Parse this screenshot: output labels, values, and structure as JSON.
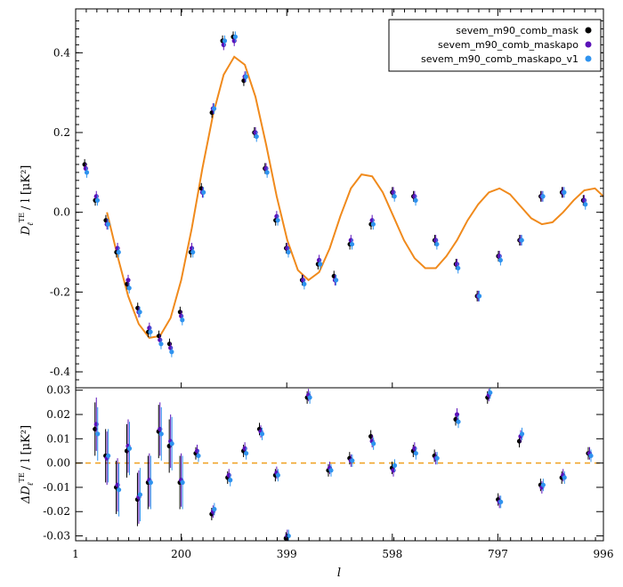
{
  "chart_data": {
    "type": "scatter",
    "xlabel": "l",
    "x_ticks": [
      "1",
      "200",
      "399",
      "598",
      "797",
      "996"
    ],
    "xlim": [
      1,
      996
    ],
    "top": {
      "ylabel_main": "D",
      "ylabel_sub": "ℓ",
      "ylabel_sup": "TE",
      "ylabel_rest": "/ l [μK²]",
      "ylim": [
        -0.44,
        0.51
      ],
      "y_ticks": [
        "-0.4",
        "-0.2",
        "0.0",
        "0.2",
        "0.4"
      ],
      "theory_curve": {
        "color": "#f08a1c",
        "x": [
          60,
          80,
          100,
          120,
          140,
          160,
          180,
          200,
          220,
          240,
          260,
          280,
          300,
          320,
          340,
          360,
          380,
          400,
          420,
          440,
          460,
          480,
          500,
          520,
          540,
          560,
          580,
          600,
          620,
          640,
          660,
          680,
          700,
          720,
          740,
          760,
          780,
          800,
          820,
          840,
          860,
          880,
          900,
          920,
          940,
          960,
          980,
          996
        ],
        "y": [
          0.0,
          -0.11,
          -0.21,
          -0.28,
          -0.315,
          -0.31,
          -0.265,
          -0.17,
          -0.04,
          0.11,
          0.245,
          0.345,
          0.39,
          0.37,
          0.29,
          0.17,
          0.04,
          -0.07,
          -0.145,
          -0.17,
          -0.15,
          -0.09,
          -0.01,
          0.06,
          0.095,
          0.09,
          0.05,
          -0.01,
          -0.07,
          -0.115,
          -0.14,
          -0.14,
          -0.11,
          -0.07,
          -0.02,
          0.02,
          0.05,
          0.06,
          0.045,
          0.015,
          -0.015,
          -0.03,
          -0.025,
          0.0,
          0.03,
          0.055,
          0.06,
          0.04
        ]
      },
      "series": [
        {
          "name": "sevem_m90_comb_mask",
          "color": "#000000",
          "x": [
            20,
            40,
            60,
            80,
            100,
            120,
            140,
            160,
            180,
            200,
            220,
            240,
            260,
            280,
            300,
            320,
            340,
            360,
            380,
            400,
            430,
            460,
            490,
            520,
            560,
            600,
            640,
            680,
            720,
            760,
            800,
            840,
            880,
            920,
            960
          ],
          "y": [
            0.12,
            0.03,
            -0.02,
            -0.1,
            -0.18,
            -0.24,
            -0.3,
            -0.31,
            -0.33,
            -0.25,
            -0.1,
            0.06,
            0.25,
            0.43,
            0.44,
            0.33,
            0.2,
            0.11,
            -0.02,
            -0.09,
            -0.17,
            -0.13,
            -0.16,
            -0.08,
            -0.03,
            0.05,
            0.04,
            -0.07,
            -0.13,
            -0.21,
            -0.11,
            -0.07,
            0.04,
            0.05,
            0.03
          ]
        },
        {
          "name": "sevem_m90_comb_maskapo",
          "color": "#5b12b8",
          "x": [
            20,
            40,
            60,
            80,
            100,
            120,
            140,
            160,
            180,
            200,
            220,
            240,
            260,
            280,
            300,
            320,
            340,
            360,
            380,
            400,
            430,
            460,
            490,
            520,
            560,
            600,
            640,
            680,
            720,
            760,
            800,
            840,
            880,
            920,
            960
          ],
          "y": [
            0.11,
            0.04,
            -0.03,
            -0.09,
            -0.17,
            -0.25,
            -0.29,
            -0.32,
            -0.34,
            -0.26,
            -0.09,
            0.05,
            0.26,
            0.42,
            0.43,
            0.34,
            0.2,
            0.11,
            -0.01,
            -0.09,
            -0.17,
            -0.12,
            -0.17,
            -0.07,
            -0.02,
            0.05,
            0.04,
            -0.07,
            -0.13,
            -0.21,
            -0.11,
            -0.07,
            0.04,
            0.05,
            0.03
          ]
        },
        {
          "name": "sevem_m90_comb_maskapo_v1",
          "color": "#2f93ef",
          "x": [
            20,
            40,
            60,
            80,
            100,
            120,
            140,
            160,
            180,
            200,
            220,
            240,
            260,
            280,
            300,
            320,
            340,
            360,
            380,
            400,
            430,
            460,
            490,
            520,
            560,
            600,
            640,
            680,
            720,
            760,
            800,
            840,
            880,
            920,
            960
          ],
          "y": [
            0.1,
            0.03,
            -0.03,
            -0.1,
            -0.19,
            -0.25,
            -0.3,
            -0.33,
            -0.35,
            -0.27,
            -0.1,
            0.05,
            0.26,
            0.43,
            0.44,
            0.34,
            0.19,
            0.1,
            -0.02,
            -0.1,
            -0.18,
            -0.13,
            -0.17,
            -0.08,
            -0.03,
            0.04,
            0.03,
            -0.08,
            -0.14,
            -0.21,
            -0.12,
            -0.07,
            0.04,
            0.05,
            0.02
          ]
        }
      ],
      "legend_position": "top-right"
    },
    "bottom": {
      "ylabel": "ΔD",
      "ylabel_sub": "ℓ",
      "ylabel_sup": "TE",
      "ylabel_rest": "/ l [μK²]",
      "ylim": [
        -0.032,
        0.031
      ],
      "y_ticks": [
        "-0.03",
        "-0.02",
        "-0.01",
        "0.00",
        "0.01",
        "0.02",
        "0.03"
      ],
      "reference_line": 0.0,
      "series": [
        {
          "name": "sevem_m90_comb_mask",
          "color": "#000000",
          "x": [
            40,
            60,
            80,
            100,
            120,
            140,
            160,
            180,
            200,
            230,
            260,
            290,
            320,
            350,
            380,
            400,
            440,
            480,
            520,
            560,
            600,
            640,
            680,
            720,
            780,
            800,
            840,
            880,
            920,
            970
          ],
          "y": [
            0.014,
            0.003,
            -0.01,
            0.005,
            -0.015,
            -0.008,
            0.013,
            0.007,
            -0.008,
            0.004,
            -0.021,
            -0.006,
            0.005,
            0.014,
            -0.005,
            -0.031,
            0.027,
            -0.003,
            0.002,
            0.011,
            -0.002,
            0.005,
            0.003,
            0.018,
            0.027,
            -0.015,
            0.009,
            -0.009,
            -0.006,
            0.004
          ]
        },
        {
          "name": "sevem_m90_comb_maskapo",
          "color": "#5b12b8",
          "x": [
            40,
            60,
            80,
            100,
            120,
            140,
            160,
            180,
            200,
            230,
            260,
            290,
            320,
            350,
            380,
            400,
            440,
            480,
            520,
            560,
            600,
            640,
            680,
            720,
            780,
            800,
            840,
            880,
            920,
            970
          ],
          "y": [
            0.016,
            0.002,
            -0.009,
            0.007,
            -0.014,
            -0.007,
            0.014,
            0.009,
            -0.007,
            0.005,
            -0.02,
            -0.005,
            0.006,
            0.013,
            -0.004,
            -0.03,
            0.028,
            -0.002,
            0.001,
            0.009,
            -0.003,
            0.006,
            0.002,
            0.02,
            0.028,
            -0.016,
            0.011,
            -0.01,
            -0.005,
            0.004
          ]
        },
        {
          "name": "sevem_m90_comb_maskapo_v1",
          "color": "#2f93ef",
          "x": [
            40,
            60,
            80,
            100,
            120,
            140,
            160,
            180,
            200,
            230,
            260,
            290,
            320,
            350,
            380,
            400,
            440,
            480,
            520,
            560,
            600,
            640,
            680,
            720,
            780,
            800,
            840,
            880,
            920,
            970
          ],
          "y": [
            0.012,
            0.003,
            -0.011,
            0.006,
            -0.013,
            -0.008,
            0.012,
            0.008,
            -0.008,
            0.003,
            -0.019,
            -0.007,
            0.004,
            0.012,
            -0.005,
            -0.03,
            0.027,
            -0.003,
            0.001,
            0.008,
            -0.001,
            0.004,
            0.002,
            0.017,
            0.029,
            -0.016,
            0.012,
            -0.009,
            -0.006,
            0.003
          ]
        }
      ]
    },
    "grid": false
  }
}
